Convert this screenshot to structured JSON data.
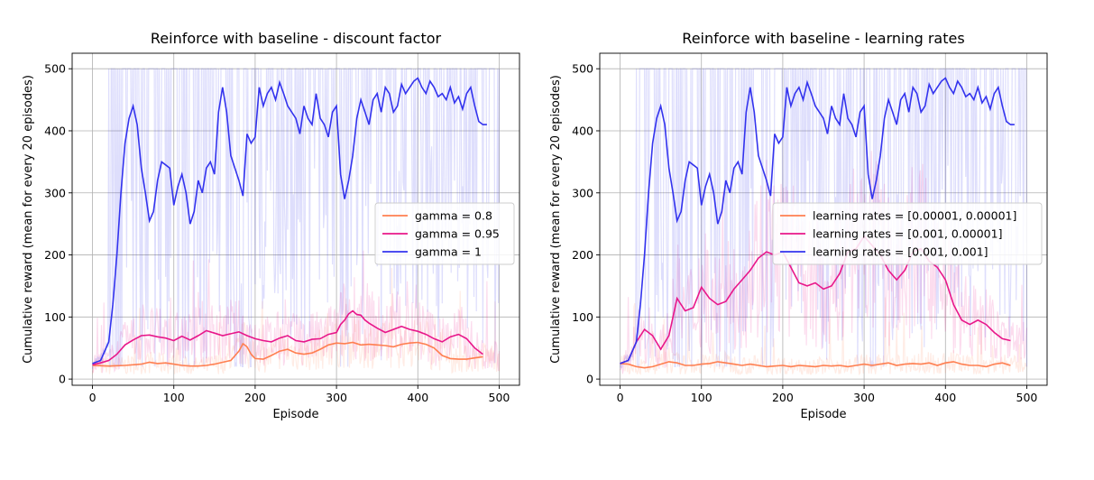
{
  "chart_data": [
    {
      "type": "line",
      "title": "Reinforce with baseline  - discount factor",
      "xlabel": "Episode",
      "ylabel": "Cumulative reward (mean for every 20 episodes)",
      "xlim": [
        -25,
        525
      ],
      "ylim": [
        -10,
        525
      ],
      "xticks": [
        0,
        100,
        200,
        300,
        400,
        500
      ],
      "yticks": [
        0,
        100,
        200,
        300,
        400,
        500
      ],
      "grid": true,
      "legend": "center-right",
      "series": [
        {
          "name": "gamma = 0.8",
          "color": "#ff7f50",
          "x": [
            0,
            20,
            40,
            60,
            70,
            80,
            90,
            100,
            110,
            120,
            130,
            140,
            150,
            160,
            170,
            180,
            185,
            190,
            195,
            200,
            210,
            220,
            230,
            240,
            250,
            260,
            270,
            280,
            290,
            300,
            310,
            320,
            330,
            340,
            350,
            360,
            370,
            380,
            390,
            400,
            410,
            420,
            430,
            440,
            450,
            460,
            470,
            480
          ],
          "y": [
            22,
            21,
            22,
            24,
            27,
            25,
            26,
            24,
            22,
            21,
            21,
            22,
            24,
            27,
            30,
            45,
            57,
            52,
            40,
            33,
            32,
            38,
            45,
            48,
            42,
            40,
            42,
            48,
            55,
            58,
            57,
            59,
            55,
            56,
            55,
            54,
            52,
            56,
            58,
            59,
            56,
            50,
            38,
            33,
            32,
            32,
            34,
            36
          ]
        },
        {
          "name": "gamma = 0.95",
          "color": "#e8178a",
          "x": [
            0,
            10,
            20,
            30,
            40,
            50,
            60,
            70,
            80,
            90,
            100,
            110,
            120,
            130,
            140,
            150,
            160,
            170,
            180,
            190,
            200,
            210,
            220,
            230,
            240,
            250,
            260,
            270,
            280,
            290,
            300,
            305,
            310,
            315,
            320,
            325,
            330,
            335,
            340,
            350,
            360,
            370,
            380,
            390,
            400,
            410,
            420,
            430,
            440,
            450,
            460,
            470,
            480
          ],
          "y": [
            23,
            26,
            30,
            40,
            55,
            63,
            70,
            71,
            68,
            66,
            62,
            69,
            63,
            70,
            78,
            74,
            70,
            73,
            76,
            70,
            65,
            62,
            60,
            66,
            70,
            62,
            60,
            64,
            65,
            72,
            75,
            88,
            95,
            105,
            110,
            104,
            103,
            95,
            90,
            82,
            75,
            80,
            85,
            80,
            77,
            72,
            65,
            60,
            68,
            72,
            65,
            50,
            40
          ]
        },
        {
          "name": "gamma = 1",
          "color": "#3333ee",
          "x": [
            0,
            10,
            20,
            25,
            30,
            35,
            40,
            45,
            50,
            55,
            60,
            65,
            70,
            75,
            80,
            85,
            90,
            95,
            100,
            105,
            110,
            115,
            120,
            125,
            130,
            135,
            140,
            145,
            150,
            155,
            160,
            165,
            170,
            175,
            180,
            185,
            190,
            195,
            200,
            205,
            210,
            215,
            220,
            225,
            230,
            235,
            240,
            245,
            250,
            255,
            260,
            265,
            270,
            275,
            280,
            285,
            290,
            295,
            300,
            305,
            310,
            315,
            320,
            325,
            330,
            335,
            340,
            345,
            350,
            355,
            360,
            365,
            370,
            375,
            380,
            385,
            390,
            395,
            400,
            405,
            410,
            415,
            420,
            425,
            430,
            435,
            440,
            445,
            450,
            455,
            460,
            465,
            470,
            475,
            480,
            485
          ],
          "y": [
            25,
            30,
            60,
            120,
            200,
            300,
            380,
            420,
            440,
            410,
            340,
            300,
            255,
            270,
            320,
            350,
            345,
            340,
            280,
            310,
            330,
            300,
            250,
            270,
            320,
            300,
            340,
            350,
            330,
            430,
            470,
            430,
            360,
            340,
            320,
            295,
            395,
            380,
            390,
            470,
            440,
            460,
            470,
            450,
            478,
            460,
            440,
            430,
            420,
            395,
            440,
            420,
            410,
            460,
            420,
            410,
            390,
            430,
            440,
            330,
            290,
            320,
            360,
            420,
            450,
            430,
            410,
            450,
            460,
            430,
            470,
            460,
            430,
            440,
            475,
            460,
            470,
            480,
            485,
            470,
            460,
            480,
            470,
            455,
            460,
            450,
            470,
            445,
            455,
            435,
            460,
            470,
            440,
            415,
            410,
            410
          ]
        }
      ]
    },
    {
      "type": "line",
      "title": "Reinforce with baseline  - learning rates",
      "xlabel": "Episode",
      "ylabel": "Cumulative reward (mean for every 20 episodes)",
      "xlim": [
        -25,
        525
      ],
      "ylim": [
        -10,
        525
      ],
      "xticks": [
        0,
        100,
        200,
        300,
        400,
        500
      ],
      "yticks": [
        0,
        100,
        200,
        300,
        400,
        500
      ],
      "grid": true,
      "legend": "center-right",
      "series": [
        {
          "name": "learning rates = [0.00001, 0.00001]",
          "color": "#ff7f50",
          "x": [
            0,
            10,
            20,
            30,
            40,
            50,
            60,
            70,
            80,
            90,
            100,
            110,
            120,
            130,
            140,
            150,
            160,
            170,
            180,
            190,
            200,
            210,
            220,
            230,
            240,
            250,
            260,
            270,
            280,
            290,
            300,
            310,
            320,
            330,
            340,
            350,
            360,
            370,
            380,
            390,
            400,
            410,
            420,
            430,
            440,
            450,
            460,
            470,
            480
          ],
          "y": [
            25,
            24,
            20,
            18,
            20,
            24,
            28,
            26,
            22,
            22,
            24,
            25,
            28,
            26,
            24,
            22,
            24,
            22,
            20,
            21,
            22,
            20,
            22,
            21,
            20,
            22,
            21,
            22,
            20,
            22,
            24,
            22,
            24,
            26,
            22,
            24,
            25,
            24,
            26,
            22,
            26,
            28,
            24,
            22,
            22,
            20,
            24,
            26,
            22
          ]
        },
        {
          "name": "learning rates = [0.001, 0.00001]",
          "color": "#e8178a",
          "x": [
            0,
            10,
            20,
            30,
            40,
            50,
            60,
            70,
            80,
            90,
            100,
            110,
            120,
            130,
            140,
            150,
            160,
            170,
            180,
            190,
            200,
            210,
            220,
            230,
            240,
            250,
            260,
            270,
            280,
            290,
            300,
            310,
            320,
            330,
            340,
            350,
            360,
            370,
            380,
            390,
            400,
            410,
            420,
            430,
            440,
            450,
            460,
            470,
            480
          ],
          "y": [
            25,
            30,
            60,
            80,
            70,
            48,
            70,
            130,
            110,
            115,
            148,
            130,
            120,
            125,
            145,
            160,
            175,
            195,
            205,
            200,
            205,
            180,
            155,
            150,
            155,
            145,
            150,
            170,
            205,
            210,
            230,
            215,
            200,
            175,
            160,
            175,
            205,
            210,
            190,
            180,
            160,
            120,
            95,
            88,
            95,
            88,
            75,
            65,
            62
          ]
        },
        {
          "name": "learning rates = [0.001, 0.001]",
          "color": "#3333ee",
          "x": [
            0,
            10,
            20,
            25,
            30,
            35,
            40,
            45,
            50,
            55,
            60,
            65,
            70,
            75,
            80,
            85,
            90,
            95,
            100,
            105,
            110,
            115,
            120,
            125,
            130,
            135,
            140,
            145,
            150,
            155,
            160,
            165,
            170,
            175,
            180,
            185,
            190,
            195,
            200,
            205,
            210,
            215,
            220,
            225,
            230,
            235,
            240,
            245,
            250,
            255,
            260,
            265,
            270,
            275,
            280,
            285,
            290,
            295,
            300,
            305,
            310,
            315,
            320,
            325,
            330,
            335,
            340,
            345,
            350,
            355,
            360,
            365,
            370,
            375,
            380,
            385,
            390,
            395,
            400,
            405,
            410,
            415,
            420,
            425,
            430,
            435,
            440,
            445,
            450,
            455,
            460,
            465,
            470,
            475,
            480,
            485
          ],
          "y": [
            25,
            30,
            60,
            120,
            200,
            300,
            380,
            420,
            440,
            410,
            340,
            300,
            255,
            270,
            320,
            350,
            345,
            340,
            280,
            310,
            330,
            300,
            250,
            270,
            320,
            300,
            340,
            350,
            330,
            430,
            470,
            430,
            360,
            340,
            320,
            295,
            395,
            380,
            390,
            470,
            440,
            460,
            470,
            450,
            478,
            460,
            440,
            430,
            420,
            395,
            440,
            420,
            410,
            460,
            420,
            410,
            390,
            430,
            440,
            330,
            290,
            320,
            360,
            420,
            450,
            430,
            410,
            450,
            460,
            430,
            470,
            460,
            430,
            440,
            475,
            460,
            470,
            480,
            485,
            470,
            460,
            480,
            470,
            455,
            460,
            450,
            470,
            445,
            455,
            435,
            460,
            470,
            440,
            415,
            410,
            410
          ]
        }
      ]
    }
  ]
}
